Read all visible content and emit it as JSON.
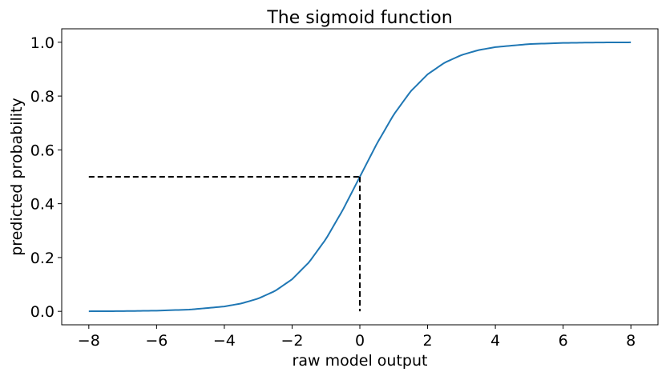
{
  "chart_data": {
    "type": "line",
    "title": "The sigmoid function",
    "xlabel": "raw model output",
    "ylabel": "predicted probability",
    "xlim": [
      -8.8,
      8.8
    ],
    "ylim": [
      -0.05,
      1.05
    ],
    "grid": false,
    "xticks": [
      -8,
      -6,
      -4,
      -2,
      0,
      2,
      4,
      6,
      8
    ],
    "xtick_labels": [
      "−8",
      "−6",
      "−4",
      "−2",
      "0",
      "2",
      "4",
      "6",
      "8"
    ],
    "yticks": [
      0.0,
      0.2,
      0.4,
      0.6,
      0.8,
      1.0
    ],
    "ytick_labels": [
      "0.0",
      "0.2",
      "0.4",
      "0.6",
      "0.8",
      "1.0"
    ],
    "series": [
      {
        "style": "solid",
        "color": "#1f77b4",
        "x": [
          -8,
          -7,
          -6,
          -5,
          -4,
          -3.5,
          -3,
          -2.5,
          -2,
          -1.5,
          -1,
          -0.5,
          0,
          0.5,
          1,
          1.5,
          2,
          2.5,
          3,
          3.5,
          4,
          5,
          6,
          7,
          8
        ],
        "y": [
          0.0003,
          0.0009,
          0.0025,
          0.0067,
          0.018,
          0.0293,
          0.0474,
          0.0759,
          0.1192,
          0.1824,
          0.2689,
          0.3775,
          0.5,
          0.6225,
          0.7311,
          0.8176,
          0.8808,
          0.9241,
          0.9526,
          0.9707,
          0.982,
          0.9933,
          0.9975,
          0.9991,
          0.9997
        ]
      },
      {
        "style": "dashed",
        "color": "#000000",
        "x": [
          -8,
          0
        ],
        "y": [
          0.5,
          0.5
        ]
      },
      {
        "style": "dashed",
        "color": "#000000",
        "x": [
          0,
          0
        ],
        "y": [
          0.5,
          0.0
        ]
      }
    ]
  }
}
